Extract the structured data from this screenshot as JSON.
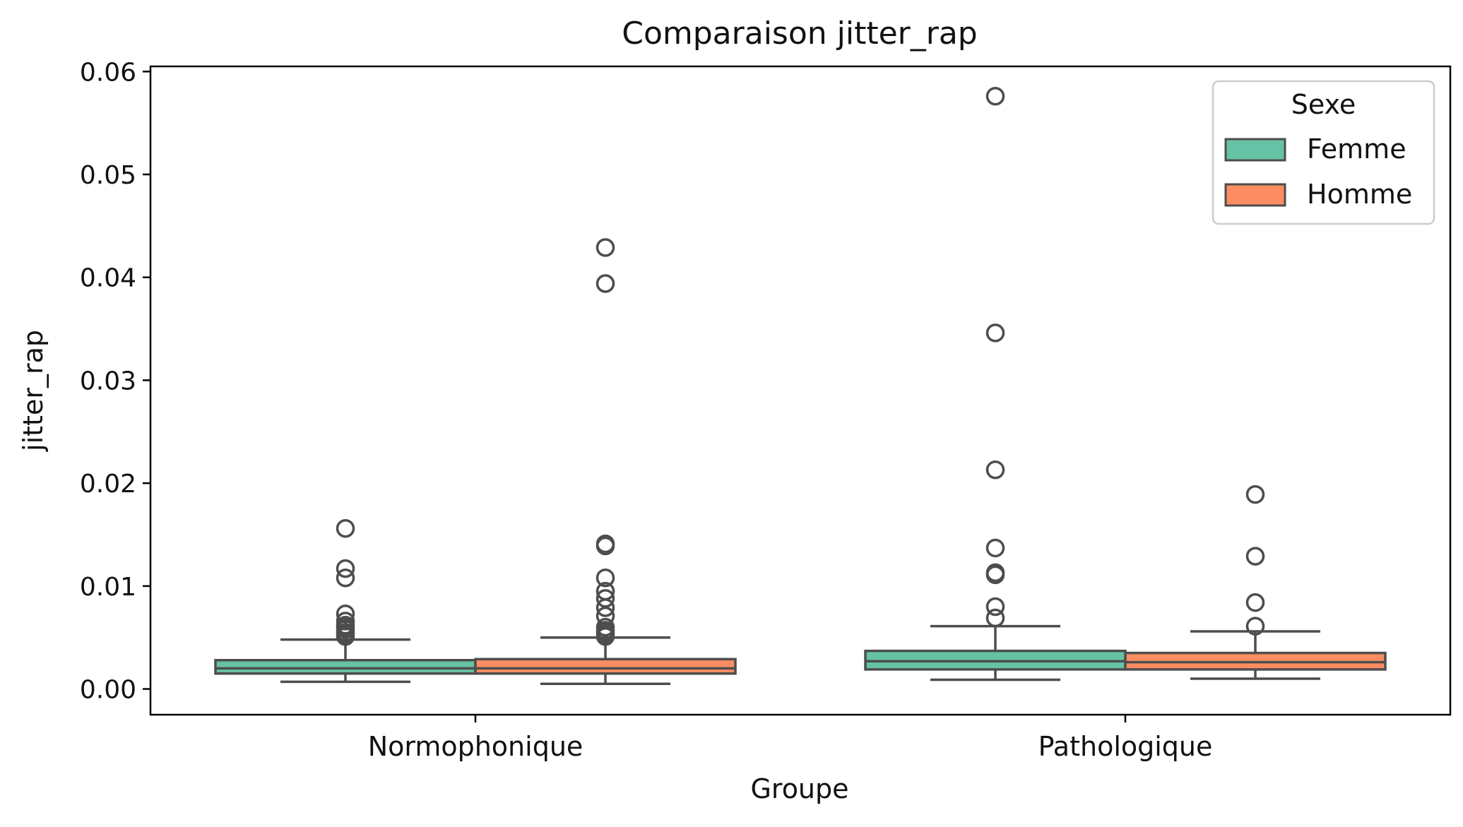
{
  "chart_data": {
    "type": "box",
    "title": "Comparaison jitter_rap",
    "xlabel": "Groupe",
    "ylabel": "jitter_rap",
    "ylim": [
      -0.0025,
      0.0605
    ],
    "yticks": [
      0.0,
      0.01,
      0.02,
      0.03,
      0.04,
      0.05,
      0.06
    ],
    "ytick_labels": [
      "0.00",
      "0.01",
      "0.02",
      "0.03",
      "0.04",
      "0.05",
      "0.06"
    ],
    "categories": [
      "Normophonique",
      "Pathologique"
    ],
    "legend": {
      "title": "Sexe",
      "position": "top-right"
    },
    "grid": false,
    "series": [
      {
        "name": "Femme",
        "color": "#66c2a5",
        "boxes": [
          {
            "whisker_low": 0.0007,
            "q1": 0.0015,
            "median": 0.002,
            "q3": 0.0028,
            "whisker_high": 0.0048,
            "outliers": [
              0.0051,
              0.0053,
              0.0055,
              0.0058,
              0.006,
              0.0062,
              0.0066,
              0.0073,
              0.0108,
              0.0117,
              0.0156
            ]
          },
          {
            "whisker_low": 0.0009,
            "q1": 0.0019,
            "median": 0.0027,
            "q3": 0.0037,
            "whisker_high": 0.0061,
            "outliers": [
              0.0069,
              0.008,
              0.0111,
              0.0113,
              0.0137,
              0.0213,
              0.0346,
              0.0576
            ]
          }
        ]
      },
      {
        "name": "Homme",
        "color": "#fc8d62",
        "boxes": [
          {
            "whisker_low": 0.0005,
            "q1": 0.0015,
            "median": 0.002,
            "q3": 0.0029,
            "whisker_high": 0.005,
            "outliers": [
              0.0051,
              0.0053,
              0.0055,
              0.0057,
              0.006,
              0.0071,
              0.0079,
              0.0088,
              0.0095,
              0.0108,
              0.0139,
              0.0141,
              0.0394,
              0.0429
            ]
          },
          {
            "whisker_low": 0.001,
            "q1": 0.0019,
            "median": 0.0026,
            "q3": 0.0035,
            "whisker_high": 0.0056,
            "outliers": [
              0.0061,
              0.0084,
              0.0129,
              0.0189
            ]
          }
        ]
      }
    ]
  }
}
